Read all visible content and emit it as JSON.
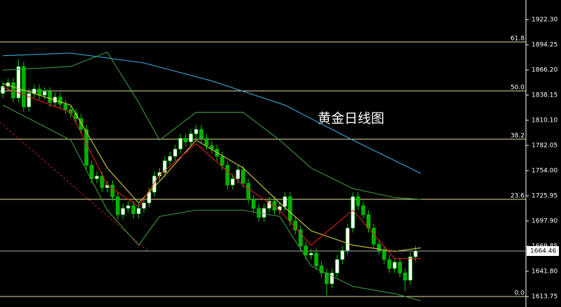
{
  "chart_data": {
    "type": "candlestick",
    "annotation": "黄金日线图",
    "ylim": [
      1602.1,
      1944.1
    ],
    "yticks": [
      {
        "value": 1922.3,
        "label": "1922.30"
      },
      1894.25,
      {
        "value": 1866.2,
        "label": "1866.20"
      },
      1838.15,
      {
        "value": 1810.1,
        "label": "1810.10"
      },
      1782.05,
      {
        "value": 1754,
        "label": "1754.00"
      },
      1725.95,
      {
        "value": 1697.9,
        "label": "1697.90"
      },
      1669.85,
      {
        "value": 1641.8,
        "label": "1641.80"
      },
      1613.75
    ],
    "up_color": "#ffffff",
    "down_color": "#00b000",
    "wick_color": "#00d000",
    "open": [
      1840,
      1848,
      1852,
      1835,
      1870,
      1825,
      1840,
      1845,
      1838,
      1842,
      1830,
      1836,
      1828,
      1822,
      1818,
      1812,
      1800,
      1760,
      1745,
      1748,
      1735,
      1738,
      1725,
      1705,
      1712,
      1715,
      1706,
      1712,
      1718,
      1730,
      1748,
      1752,
      1765,
      1770,
      1778,
      1790,
      1786,
      1795,
      1800,
      1790,
      1782,
      1778,
      1770,
      1760,
      1738,
      1745,
      1755,
      1740,
      1722,
      1712,
      1702,
      1712,
      1720,
      1710,
      1714,
      1725,
      1698,
      1688,
      1670,
      1660,
      1662,
      1648,
      1640,
      1628,
      1640,
      1655,
      1665,
      1690,
      1725,
      1715,
      1705,
      1690,
      1672,
      1665,
      1655,
      1645,
      1652,
      1640,
      1632,
      1658
    ],
    "high": [
      1853,
      1857,
      1857,
      1878,
      1875,
      1845,
      1850,
      1850,
      1847,
      1847,
      1841,
      1841,
      1833,
      1827,
      1823,
      1817,
      1805,
      1765,
      1753,
      1753,
      1743,
      1743,
      1730,
      1717,
      1720,
      1720,
      1717,
      1723,
      1735,
      1753,
      1757,
      1770,
      1775,
      1783,
      1795,
      1795,
      1800,
      1805,
      1805,
      1795,
      1787,
      1783,
      1775,
      1765,
      1750,
      1760,
      1760,
      1745,
      1727,
      1717,
      1717,
      1725,
      1725,
      1719,
      1730,
      1730,
      1703,
      1693,
      1675,
      1667,
      1667,
      1653,
      1645,
      1645,
      1660,
      1670,
      1695,
      1730,
      1730,
      1720,
      1710,
      1695,
      1677,
      1670,
      1660,
      1657,
      1657,
      1645,
      1663,
      1670
    ],
    "low": [
      1835,
      1843,
      1830,
      1830,
      1820,
      1820,
      1835,
      1833,
      1833,
      1825,
      1825,
      1823,
      1817,
      1813,
      1807,
      1795,
      1755,
      1740,
      1740,
      1730,
      1730,
      1720,
      1700,
      1700,
      1707,
      1701,
      1701,
      1707,
      1713,
      1725,
      1743,
      1747,
      1760,
      1765,
      1773,
      1781,
      1781,
      1790,
      1785,
      1777,
      1773,
      1765,
      1755,
      1733,
      1733,
      1740,
      1735,
      1717,
      1707,
      1697,
      1697,
      1707,
      1705,
      1705,
      1709,
      1693,
      1683,
      1665,
      1655,
      1655,
      1643,
      1635,
      1615,
      1623,
      1635,
      1650,
      1660,
      1685,
      1710,
      1700,
      1685,
      1667,
      1660,
      1650,
      1640,
      1640,
      1635,
      1620,
      1627,
      1653
    ],
    "close": [
      1848,
      1852,
      1835,
      1870,
      1825,
      1840,
      1845,
      1838,
      1842,
      1830,
      1836,
      1828,
      1822,
      1818,
      1812,
      1800,
      1760,
      1745,
      1748,
      1735,
      1738,
      1725,
      1705,
      1712,
      1715,
      1706,
      1712,
      1718,
      1730,
      1748,
      1752,
      1765,
      1770,
      1778,
      1790,
      1786,
      1795,
      1800,
      1790,
      1782,
      1778,
      1770,
      1760,
      1738,
      1745,
      1755,
      1740,
      1722,
      1712,
      1702,
      1712,
      1720,
      1710,
      1714,
      1725,
      1698,
      1688,
      1670,
      1660,
      1662,
      1648,
      1640,
      1628,
      1640,
      1655,
      1665,
      1690,
      1725,
      1715,
      1705,
      1690,
      1672,
      1665,
      1655,
      1645,
      1652,
      1640,
      1632,
      1658,
      1664.46
    ],
    "series": [
      {
        "color": "#3aa6d8",
        "x": [
          0,
          13,
          27,
          40,
          54,
          67,
          80
        ],
        "values": [
          1882,
          1885,
          1874,
          1854,
          1827,
          1788,
          1751
        ]
      },
      {
        "color": "#3c9a3c",
        "x": [
          0,
          13,
          20,
          26,
          30,
          37,
          46,
          53,
          59,
          67,
          75,
          80
        ],
        "values": [
          1866,
          1870,
          1886,
          1830,
          1788,
          1819,
          1819,
          1788,
          1757,
          1734,
          1724,
          1722
        ]
      },
      {
        "color": "#3c9a3c",
        "x": [
          0,
          13,
          20,
          26,
          30,
          37,
          46,
          53,
          59,
          67,
          75,
          80
        ],
        "values": [
          1827,
          1788,
          1710,
          1671,
          1703,
          1710,
          1710,
          1703,
          1648,
          1625,
          1617,
          1609
        ]
      },
      {
        "color": "#d8d040",
        "x": [
          0,
          13,
          20,
          26,
          30,
          37,
          46,
          53,
          59,
          67,
          75,
          80
        ],
        "values": [
          1851,
          1827,
          1757,
          1718,
          1742,
          1788,
          1757,
          1718,
          1687,
          1671,
          1664,
          1668
        ]
      },
      {
        "color": "#e02020",
        "x": [
          0,
          13,
          20,
          26,
          30,
          37,
          46,
          53,
          59,
          67,
          75,
          80
        ],
        "values": [
          1847,
          1819,
          1738,
          1714,
          1749,
          1784,
          1738,
          1710,
          1671,
          1710,
          1656,
          1656
        ]
      }
    ],
    "levels": [
      {
        "value": 1897.4,
        "label": "61.8"
      },
      {
        "value": 1842.8,
        "label": "50.0"
      },
      {
        "value": 1789.1,
        "label": "38.2"
      },
      {
        "value": 1722.1,
        "label": "23.6"
      },
      {
        "value": 1613.8,
        "label": "0.0"
      }
    ],
    "level_color": "#e8e0a0",
    "last_price": 1664.46
  }
}
